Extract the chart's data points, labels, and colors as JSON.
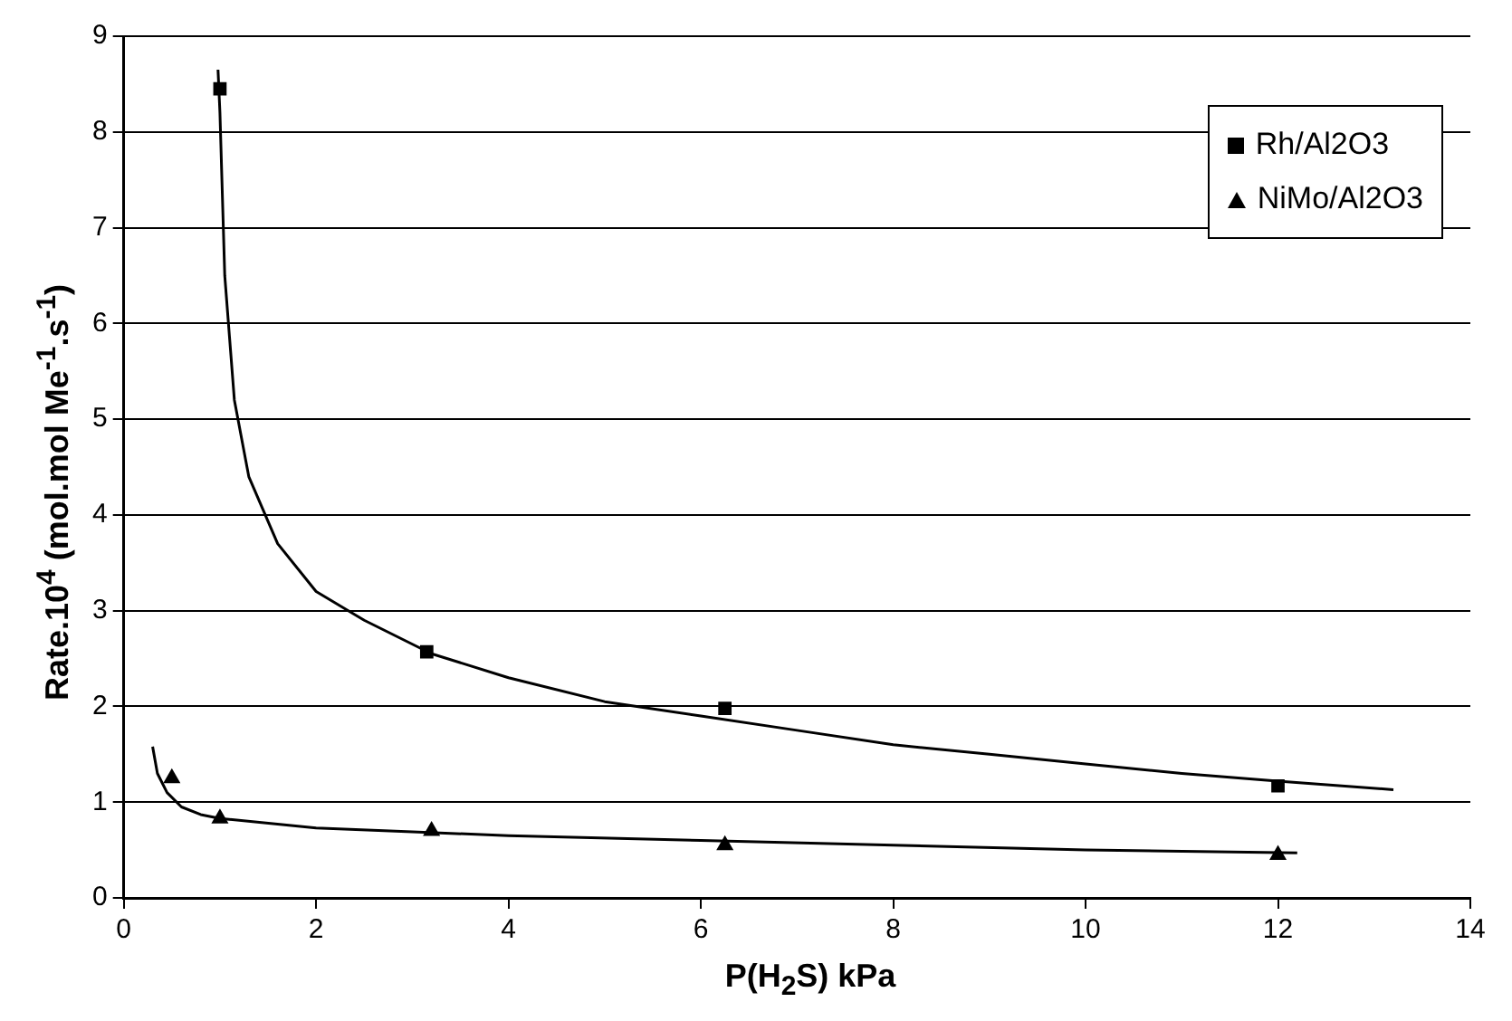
{
  "chart_data": {
    "type": "scatter",
    "xlabel": "P(H$_{2}$S) kPa",
    "ylabel": "Rate.10$^{4}$ (mol.mol Me$^{-1}$.s$^{-1}$)",
    "xlim": [
      0,
      14
    ],
    "xticks": [
      0,
      2,
      4,
      6,
      8,
      10,
      12,
      14
    ],
    "ylim": [
      0,
      9
    ],
    "yticks": [
      0,
      1,
      2,
      3,
      4,
      5,
      6,
      7,
      8,
      9
    ],
    "grid": "y",
    "legend": "top right",
    "series": [
      {
        "name": "Rh/Al2O3",
        "marker": "square",
        "color": "#000000",
        "x": [
          1.0,
          3.15,
          6.25,
          12.0
        ],
        "values": [
          8.45,
          2.57,
          1.98,
          1.17
        ]
      },
      {
        "name": "NiMo/Al2O3",
        "marker": "triangle",
        "color": "#000000",
        "x": [
          0.5,
          1.0,
          3.2,
          6.25,
          12.0
        ],
        "values": [
          1.25,
          0.83,
          0.7,
          0.55,
          0.45
        ]
      },
      {
        "type": "line",
        "marker": "none",
        "color": "#000000",
        "x": [
          0.98,
          1.0,
          1.05,
          1.15,
          1.3,
          1.6,
          2,
          2.5,
          3.2,
          4,
          5,
          6,
          7,
          8,
          9,
          10,
          11,
          12,
          13.2
        ],
        "values": [
          8.65,
          8.2,
          6.5,
          5.2,
          4.4,
          3.7,
          3.2,
          2.9,
          2.55,
          2.3,
          2.05,
          1.9,
          1.75,
          1.6,
          1.5,
          1.4,
          1.3,
          1.22,
          1.13
        ]
      },
      {
        "type": "line",
        "marker": "none",
        "color": "#000000",
        "x": [
          0.3,
          0.35,
          0.45,
          0.6,
          0.8,
          1,
          2,
          3,
          4,
          6,
          8,
          10,
          12.2
        ],
        "values": [
          1.58,
          1.3,
          1.1,
          0.95,
          0.87,
          0.83,
          0.73,
          0.69,
          0.65,
          0.6,
          0.55,
          0.5,
          0.47
        ]
      }
    ]
  }
}
